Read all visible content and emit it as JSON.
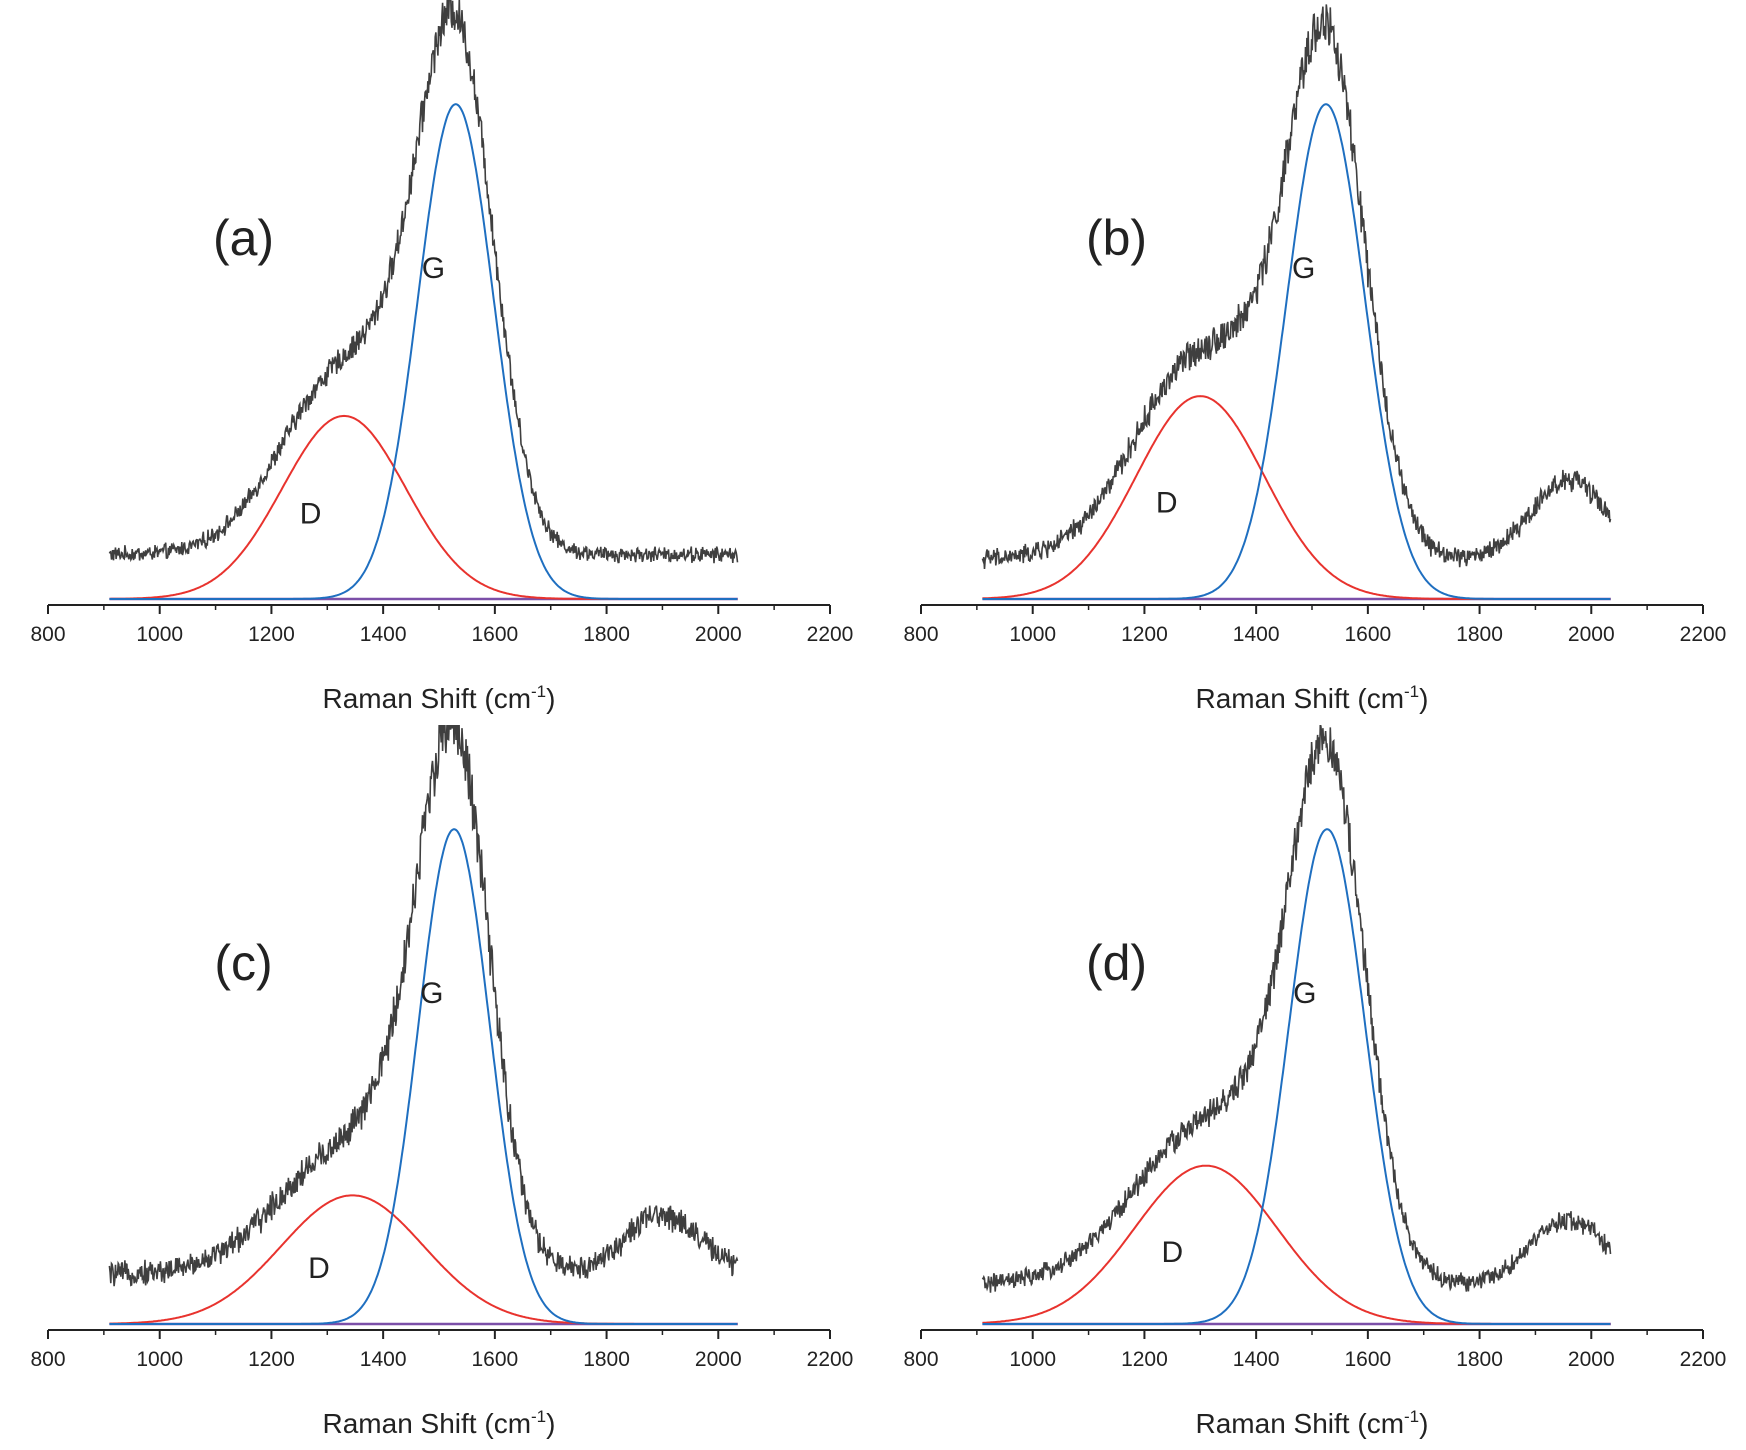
{
  "figure": {
    "panels": [
      {
        "label": "(a)",
        "peak_d_label": "D",
        "peak_g_label": "G",
        "xlabel_main": "Raman Shift (cm",
        "xlabel_sup": "-1",
        "xlabel_close": ")"
      },
      {
        "label": "(b)",
        "peak_d_label": "D",
        "peak_g_label": "G",
        "xlabel_main": "Raman Shift (cm",
        "xlabel_sup": "-1",
        "xlabel_close": ")"
      },
      {
        "label": "(c)",
        "peak_d_label": "D",
        "peak_g_label": "G",
        "xlabel_main": "Raman Shift (cm",
        "xlabel_sup": "-1",
        "xlabel_close": ")"
      },
      {
        "label": "(d)",
        "peak_d_label": "D",
        "peak_g_label": "G",
        "xlabel_main": "Raman Shift (cm",
        "xlabel_sup": "-1",
        "xlabel_close": ")"
      }
    ]
  },
  "colors": {
    "raw": "#3f3f3f",
    "d_band": "#e8332e",
    "g_band": "#1f6fc0",
    "baseline": "#7b4fa8",
    "axis": "#222222"
  },
  "chart_data": [
    {
      "type": "line",
      "panel": "(a)",
      "xlabel": "Raman Shift (cm-1)",
      "ylabel": "",
      "xlim": [
        800,
        2200
      ],
      "xticks": [
        800,
        1000,
        1200,
        1400,
        1600,
        1800,
        2000,
        2200
      ],
      "ylim": [
        0,
        1.15
      ],
      "x_range": [
        910,
        2035
      ],
      "series": [
        {
          "name": "D",
          "center": 1330,
          "fwhm": 260,
          "height": 0.37,
          "shape": "gaussian"
        },
        {
          "name": "G",
          "center": 1530,
          "fwhm": 160,
          "height": 1.0,
          "shape": "gaussian"
        },
        {
          "name": "raw spectrum",
          "baseline": 0.03,
          "baseline_slope": 0.0,
          "bump_center": 1900,
          "bump_height": 0.0,
          "noise": 0.012
        }
      ]
    },
    {
      "type": "line",
      "panel": "(b)",
      "xlabel": "Raman Shift (cm-1)",
      "ylabel": "",
      "xlim": [
        800,
        2200
      ],
      "xticks": [
        800,
        1000,
        1200,
        1400,
        1600,
        1800,
        2000,
        2200
      ],
      "ylim": [
        0,
        1.15
      ],
      "x_range": [
        910,
        2035
      ],
      "series": [
        {
          "name": "D",
          "center": 1300,
          "fwhm": 270,
          "height": 0.41,
          "shape": "gaussian"
        },
        {
          "name": "G",
          "center": 1525,
          "fwhm": 165,
          "height": 1.0,
          "shape": "gaussian"
        },
        {
          "name": "raw spectrum",
          "baseline": 0.02,
          "baseline_slope": 0.0,
          "bump_center": 1960,
          "bump_height": 0.16,
          "noise": 0.015
        }
      ]
    },
    {
      "type": "line",
      "panel": "(c)",
      "xlabel": "Raman Shift (cm-1)",
      "ylabel": "",
      "xlim": [
        800,
        2200
      ],
      "xticks": [
        800,
        1000,
        1200,
        1400,
        1600,
        1800,
        2000,
        2200
      ],
      "ylim": [
        0,
        1.15
      ],
      "x_range": [
        910,
        2035
      ],
      "series": [
        {
          "name": "D",
          "center": 1345,
          "fwhm": 300,
          "height": 0.26,
          "shape": "gaussian"
        },
        {
          "name": "G",
          "center": 1527,
          "fwhm": 150,
          "height": 1.0,
          "shape": "gaussian"
        },
        {
          "name": "raw spectrum",
          "baseline": 0.04,
          "baseline_slope": 0.0,
          "bump_center": 1900,
          "bump_height": 0.12,
          "noise": 0.018
        }
      ]
    },
    {
      "type": "line",
      "panel": "(d)",
      "xlabel": "Raman Shift (cm-1)",
      "ylabel": "",
      "xlim": [
        800,
        2200
      ],
      "xticks": [
        800,
        1000,
        1200,
        1400,
        1600,
        1800,
        2000,
        2200
      ],
      "ylim": [
        0,
        1.15
      ],
      "x_range": [
        910,
        2035
      ],
      "series": [
        {
          "name": "D",
          "center": 1310,
          "fwhm": 300,
          "height": 0.32,
          "shape": "gaussian"
        },
        {
          "name": "G",
          "center": 1527,
          "fwhm": 160,
          "height": 1.0,
          "shape": "gaussian"
        },
        {
          "name": "raw spectrum",
          "baseline": 0.02,
          "baseline_slope": 0.0,
          "bump_center": 1960,
          "bump_height": 0.13,
          "noise": 0.014
        }
      ]
    }
  ]
}
